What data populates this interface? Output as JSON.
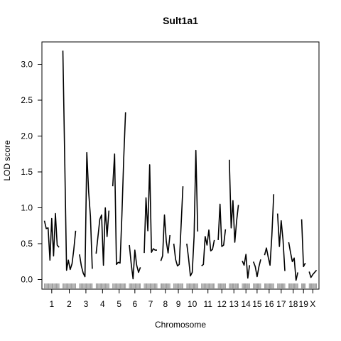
{
  "chart_data": {
    "type": "line",
    "title": "Sult1a1",
    "xlabel": "Chromosome",
    "ylabel": "LOD score",
    "ylim": [
      -0.1,
      3.3
    ],
    "yticks": [
      0.0,
      0.5,
      1.0,
      1.5,
      2.0,
      2.5,
      3.0
    ],
    "ytick_labels": [
      "0.0",
      "0.5",
      "1.0",
      "1.5",
      "2.0",
      "2.5",
      "3.0"
    ],
    "grid": false,
    "chromosomes": [
      {
        "name": "1",
        "values": [
          0.82,
          0.71,
          0.72,
          0.27,
          0.85,
          0.33,
          0.92,
          0.48,
          0.45
        ]
      },
      {
        "name": "2",
        "values": [
          3.19,
          1.68,
          0.13,
          0.27,
          0.14,
          0.22,
          0.42,
          0.68
        ]
      },
      {
        "name": "3",
        "values": [
          0.35,
          0.19,
          0.09,
          0.04,
          1.77,
          1.22,
          0.88,
          0.15
        ]
      },
      {
        "name": "4",
        "values": [
          0.36,
          0.6,
          0.84,
          0.9,
          0.2,
          1.0,
          0.6,
          0.96
        ]
      },
      {
        "name": "5",
        "values": [
          1.3,
          1.75,
          0.21,
          0.24,
          0.23,
          0.9,
          1.7,
          2.33
        ]
      },
      {
        "name": "6",
        "values": [
          0.48,
          0.22,
          0.01,
          0.41,
          0.2,
          0.1,
          0.17
        ]
      },
      {
        "name": "7",
        "values": [
          0.37,
          1.14,
          0.68,
          1.6,
          0.38,
          0.43,
          0.41,
          0.41
        ]
      },
      {
        "name": "8",
        "values": [
          0.26,
          0.33,
          0.9,
          0.53,
          0.37,
          0.62
        ]
      },
      {
        "name": "9",
        "values": [
          0.5,
          0.28,
          0.19,
          0.21,
          0.75,
          1.3
        ]
      },
      {
        "name": "10",
        "values": [
          0.5,
          0.3,
          0.05,
          0.1,
          0.6,
          1.8,
          0.67
        ]
      },
      {
        "name": "11",
        "values": [
          0.19,
          0.21,
          0.6,
          0.48,
          0.69,
          0.4,
          0.42,
          0.55
        ]
      },
      {
        "name": "12",
        "values": [
          0.55,
          1.05,
          0.46,
          0.48,
          0.7
        ]
      },
      {
        "name": "13",
        "values": [
          1.67,
          0.72,
          1.1,
          0.52,
          0.82,
          1.04
        ]
      },
      {
        "name": "14",
        "values": [
          0.26,
          0.2,
          0.35,
          0.02,
          0.2
        ]
      },
      {
        "name": "15",
        "values": [
          0.25,
          0.18,
          0.04,
          0.18,
          0.28
        ]
      },
      {
        "name": "16",
        "values": [
          0.34,
          0.44,
          0.31,
          0.2,
          0.62,
          1.19
        ]
      },
      {
        "name": "17",
        "values": [
          0.92,
          0.46,
          0.82,
          0.55,
          0.12
        ]
      },
      {
        "name": "18",
        "values": [
          0.52,
          0.38,
          0.25,
          0.3,
          -0.01,
          0.1
        ]
      },
      {
        "name": "19",
        "values": [
          0.84,
          0.18,
          0.23
        ]
      },
      {
        "name": "X",
        "values": [
          0.11,
          0.03,
          0.07,
          0.1,
          0.13
        ]
      }
    ]
  }
}
